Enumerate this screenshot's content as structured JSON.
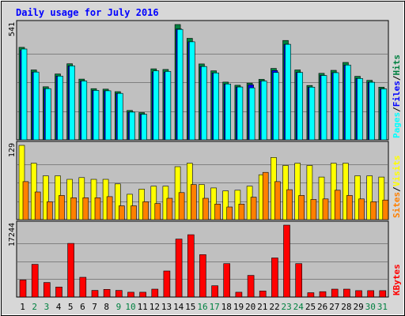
{
  "chart_data": {
    "type": "bar",
    "title": "Daily usage for July 2016",
    "days": [
      "1",
      "2",
      "3",
      "4",
      "5",
      "6",
      "7",
      "8",
      "9",
      "10",
      "11",
      "12",
      "13",
      "14",
      "15",
      "16",
      "17",
      "18",
      "19",
      "20",
      "21",
      "22",
      "23",
      "24",
      "25",
      "26",
      "27",
      "28",
      "29",
      "30",
      "31"
    ],
    "weekend_days": [
      "2",
      "3",
      "9",
      "10",
      "16",
      "17",
      "23",
      "24",
      "30",
      "31"
    ],
    "colors": {
      "title": "#0000ff",
      "day_weekday": "#000000",
      "day_weekend": "#008040",
      "hits": "#008040",
      "files": "#0000ff",
      "pages": "#00ffff",
      "visits": "#ffff00",
      "sites": "#ff8000",
      "kbytes": "#ff0000",
      "plot_bg": "#c0c0c0",
      "frame_bg": "#d7d7d7",
      "grid": "#808080"
    },
    "panels": [
      {
        "id": "hits-files-pages",
        "max_label": "541",
        "ymax": 541,
        "legend": [
          {
            "text": "Pages",
            "color": "#00ffff"
          },
          {
            "text": "/",
            "color": "#000000"
          },
          {
            "text": "Files",
            "color": "#0000ff"
          },
          {
            "text": "/",
            "color": "#000000"
          },
          {
            "text": "Hits",
            "color": "#008040"
          }
        ],
        "series": [
          {
            "name": "Hits",
            "color": "#008040",
            "values": [
              434,
              328,
              249,
              309,
              357,
              285,
              240,
              238,
              226,
              138,
              128,
              333,
              330,
              541,
              476,
              356,
              324,
              271,
              256,
              266,
              284,
              335,
              466,
              328,
              255,
              312,
              326,
              363,
              298,
              279,
              247
            ]
          },
          {
            "name": "Files",
            "color": "#0000ff",
            "values": [
              420,
              318,
              240,
              299,
              347,
              276,
              232,
              230,
              218,
              130,
              120,
              318,
              318,
              520,
              460,
              344,
              314,
              262,
              248,
              258,
              276,
              325,
              448,
              316,
              247,
              302,
              315,
              351,
              288,
              270,
              239
            ]
          },
          {
            "name": "Pages",
            "color": "#00ffff",
            "values": [
              426,
              318,
              240,
              299,
              347,
              276,
              232,
              230,
              218,
              130,
              120,
              324,
              321,
              518,
              460,
              344,
              314,
              262,
              248,
              244,
              276,
              316,
              448,
              316,
              247,
              302,
              315,
              351,
              288,
              270,
              239
            ]
          }
        ]
      },
      {
        "id": "visits-sites",
        "max_label": "129",
        "ymax": 129,
        "legend": [
          {
            "text": "Sites",
            "color": "#ff8000"
          },
          {
            "text": "/",
            "color": "#000000"
          },
          {
            "text": "Visits",
            "color": "#ffff00"
          }
        ],
        "series": [
          {
            "name": "Visits",
            "color": "#ffff00",
            "values": [
              129,
              98,
              76,
              76,
              70,
              73,
              70,
              70,
              62,
              44,
              53,
              58,
              58,
              92,
              98,
              61,
              55,
              50,
              51,
              58,
              78,
              108,
              94,
              98,
              94,
              74,
              98,
              98,
              76,
              76,
              74
            ]
          },
          {
            "name": "Sites",
            "color": "#ff8000",
            "values": [
              66,
              48,
              31,
              42,
              38,
              38,
              38,
              40,
              24,
              24,
              31,
              28,
              37,
              47,
              61,
              37,
              27,
              22,
              27,
              39,
              82,
              66,
              52,
              42,
              35,
              36,
              51,
              42,
              36,
              31,
              34
            ]
          }
        ]
      },
      {
        "id": "kbytes",
        "max_label": "17244",
        "ymax": 17244,
        "legend": [
          {
            "text": "KBytes",
            "color": "#ff0000"
          }
        ],
        "series": [
          {
            "name": "KBytes",
            "color": "#ff0000",
            "values": [
              4102,
              7837,
              3494,
              2399,
              12872,
              4743,
              1590,
              1836,
              1590,
              1162,
              1162,
              1897,
              6246,
              13912,
              14952,
              10184,
              2705,
              8016,
              1162,
              5188,
              1468,
              9388,
              17244,
              8016,
              1040,
              1284,
              1897,
              1897,
              1530,
              1530,
              1530
            ]
          }
        ]
      }
    ]
  }
}
